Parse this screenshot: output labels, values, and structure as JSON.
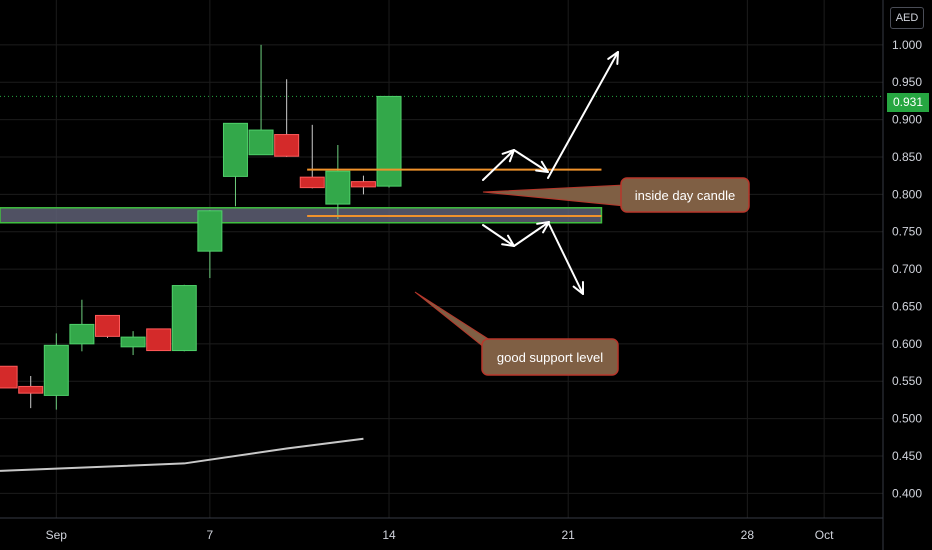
{
  "currency": "AED",
  "last_price_label": "0.931",
  "annotations": {
    "inside_day": "inside day candle",
    "support": "good support level"
  },
  "colors": {
    "up": "#33a84a",
    "down": "#d42a2a",
    "grid": "#1c1c1c",
    "support_zone": "#5e5f74",
    "support_border": "#40c040",
    "orange_line": "#f0922b",
    "ma_line": "#c8c8c8",
    "callout_fill": "#7f5f44",
    "callout_border": "#b8372b",
    "last_price_bg": "#26a641"
  },
  "chart_data": {
    "type": "candlestick",
    "y_axis_ticks": [
      "1.000",
      "0.950",
      "0.900",
      "0.850",
      "0.800",
      "0.750",
      "0.700",
      "0.650",
      "0.600",
      "0.550",
      "0.500",
      "0.450",
      "0.400"
    ],
    "ylim": [
      0.367,
      1.06
    ],
    "x_axis_ticks": [
      {
        "label": "Sep",
        "day": 1
      },
      {
        "label": "7",
        "day": 7
      },
      {
        "label": "14",
        "day": 14
      },
      {
        "label": "21",
        "day": 21
      },
      {
        "label": "28",
        "day": 28
      },
      {
        "label": "Oct",
        "day": 31
      }
    ],
    "xlim": [
      -1.2,
      33.3
    ],
    "candles": [
      {
        "day": -1,
        "open": 0.57,
        "high": 0.57,
        "low": 0.541,
        "close": 0.541
      },
      {
        "day": 0,
        "open": 0.543,
        "high": 0.557,
        "low": 0.514,
        "close": 0.534
      },
      {
        "day": 1,
        "open": 0.531,
        "high": 0.614,
        "low": 0.512,
        "close": 0.598
      },
      {
        "day": 2,
        "open": 0.6,
        "high": 0.659,
        "low": 0.59,
        "close": 0.626
      },
      {
        "day": 3,
        "open": 0.638,
        "high": 0.638,
        "low": 0.608,
        "close": 0.61
      },
      {
        "day": 4,
        "open": 0.596,
        "high": 0.617,
        "low": 0.585,
        "close": 0.609
      },
      {
        "day": 5,
        "open": 0.62,
        "high": 0.62,
        "low": 0.591,
        "close": 0.591
      },
      {
        "day": 6,
        "open": 0.591,
        "high": 0.679,
        "low": 0.59,
        "close": 0.678
      },
      {
        "day": 7,
        "open": 0.724,
        "high": 0.779,
        "low": 0.688,
        "close": 0.778
      },
      {
        "day": 8,
        "open": 0.824,
        "high": 0.895,
        "low": 0.784,
        "close": 0.895
      },
      {
        "day": 9,
        "open": 0.853,
        "high": 1.0,
        "low": 0.853,
        "close": 0.886
      },
      {
        "day": 10,
        "open": 0.88,
        "high": 0.954,
        "low": 0.85,
        "close": 0.851
      },
      {
        "day": 11,
        "open": 0.823,
        "high": 0.893,
        "low": 0.808,
        "close": 0.809
      },
      {
        "day": 12,
        "open": 0.787,
        "high": 0.866,
        "low": 0.767,
        "close": 0.831
      },
      {
        "day": 13,
        "open": 0.817,
        "high": 0.825,
        "low": 0.8,
        "close": 0.81
      },
      {
        "day": 14,
        "open": 0.811,
        "high": 0.931,
        "low": 0.809,
        "close": 0.931
      }
    ],
    "moving_average": [
      [
        -1.2,
        0.43
      ],
      [
        6,
        0.44
      ],
      [
        10,
        0.46
      ],
      [
        13,
        0.473
      ]
    ],
    "support_zone": [
      0.762,
      0.782
    ],
    "horizontal_lines": [
      0.833,
      0.771
    ],
    "last_price": 0.931
  }
}
